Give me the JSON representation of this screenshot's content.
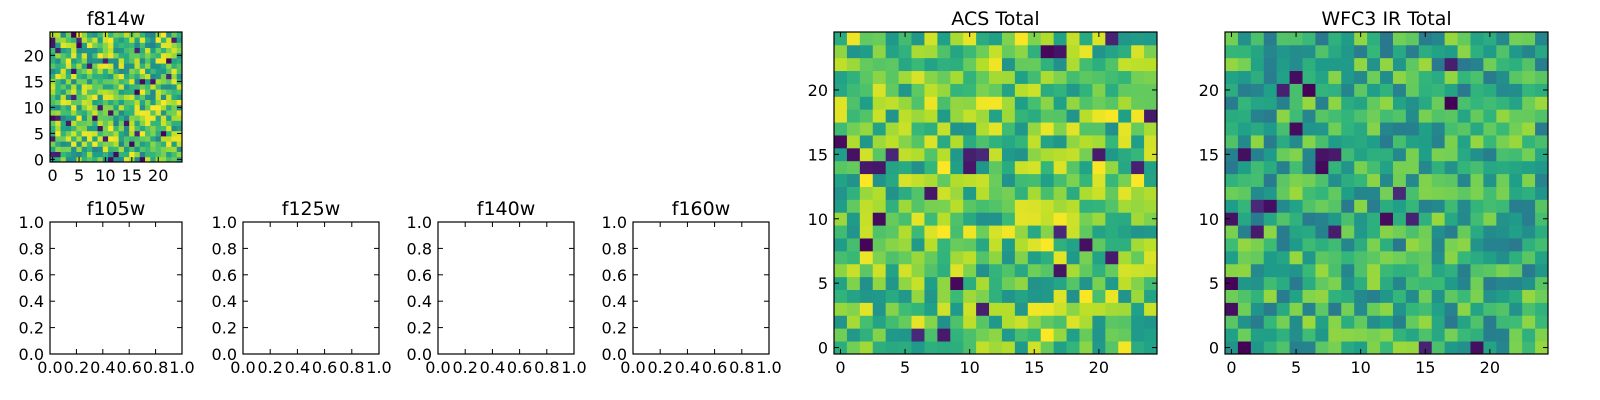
{
  "chart_data": [
    {
      "id": "f814w",
      "type": "heatmap",
      "title": "f814w",
      "colormap": "viridis",
      "size": 25,
      "seed": 11,
      "valueRange": [
        0.45,
        1.0
      ],
      "lowFrac": 0.05,
      "xticks": [
        "0",
        "5",
        "10",
        "15",
        "20"
      ],
      "yticks": [
        "0",
        "5",
        "10",
        "15",
        "20"
      ]
    },
    {
      "id": "f105w",
      "type": "empty",
      "title": "f105w",
      "xticks": [
        "0.0",
        "0.2",
        "0.4",
        "0.6",
        "0.8",
        "1.0"
      ],
      "yticks": [
        "0.0",
        "0.2",
        "0.4",
        "0.6",
        "0.8",
        "1.0"
      ]
    },
    {
      "id": "f125w",
      "type": "empty",
      "title": "f125w",
      "xticks": [
        "0.0",
        "0.2",
        "0.4",
        "0.6",
        "0.8",
        "1.0"
      ],
      "yticks": [
        "0.0",
        "0.2",
        "0.4",
        "0.6",
        "0.8",
        "1.0"
      ]
    },
    {
      "id": "f140w",
      "type": "empty",
      "title": "f140w",
      "xticks": [
        "0.0",
        "0.2",
        "0.4",
        "0.6",
        "0.8",
        "1.0"
      ],
      "yticks": [
        "0.0",
        "0.2",
        "0.4",
        "0.6",
        "0.8",
        "1.0"
      ]
    },
    {
      "id": "f160w",
      "type": "empty",
      "title": "f160w",
      "xticks": [
        "0.0",
        "0.2",
        "0.4",
        "0.6",
        "0.8",
        "1.0"
      ],
      "yticks": [
        "0.0",
        "0.2",
        "0.4",
        "0.6",
        "0.8",
        "1.0"
      ]
    },
    {
      "id": "acs-total",
      "type": "heatmap",
      "title": "ACS Total",
      "colormap": "viridis",
      "size": 25,
      "seed": 23,
      "valueRange": [
        0.5,
        1.0
      ],
      "lowFrac": 0.03,
      "xticks": [
        "0",
        "5",
        "10",
        "15",
        "20"
      ],
      "yticks": [
        "0",
        "5",
        "10",
        "15",
        "20"
      ]
    },
    {
      "id": "wfc3-ir-total",
      "type": "heatmap",
      "title": "WFC3 IR Total",
      "colormap": "viridis",
      "size": 25,
      "seed": 37,
      "valueRange": [
        0.4,
        0.85
      ],
      "lowFrac": 0.04,
      "xticks": [
        "0",
        "5",
        "10",
        "15",
        "20"
      ],
      "yticks": [
        "0",
        "5",
        "10",
        "15",
        "20"
      ]
    }
  ]
}
